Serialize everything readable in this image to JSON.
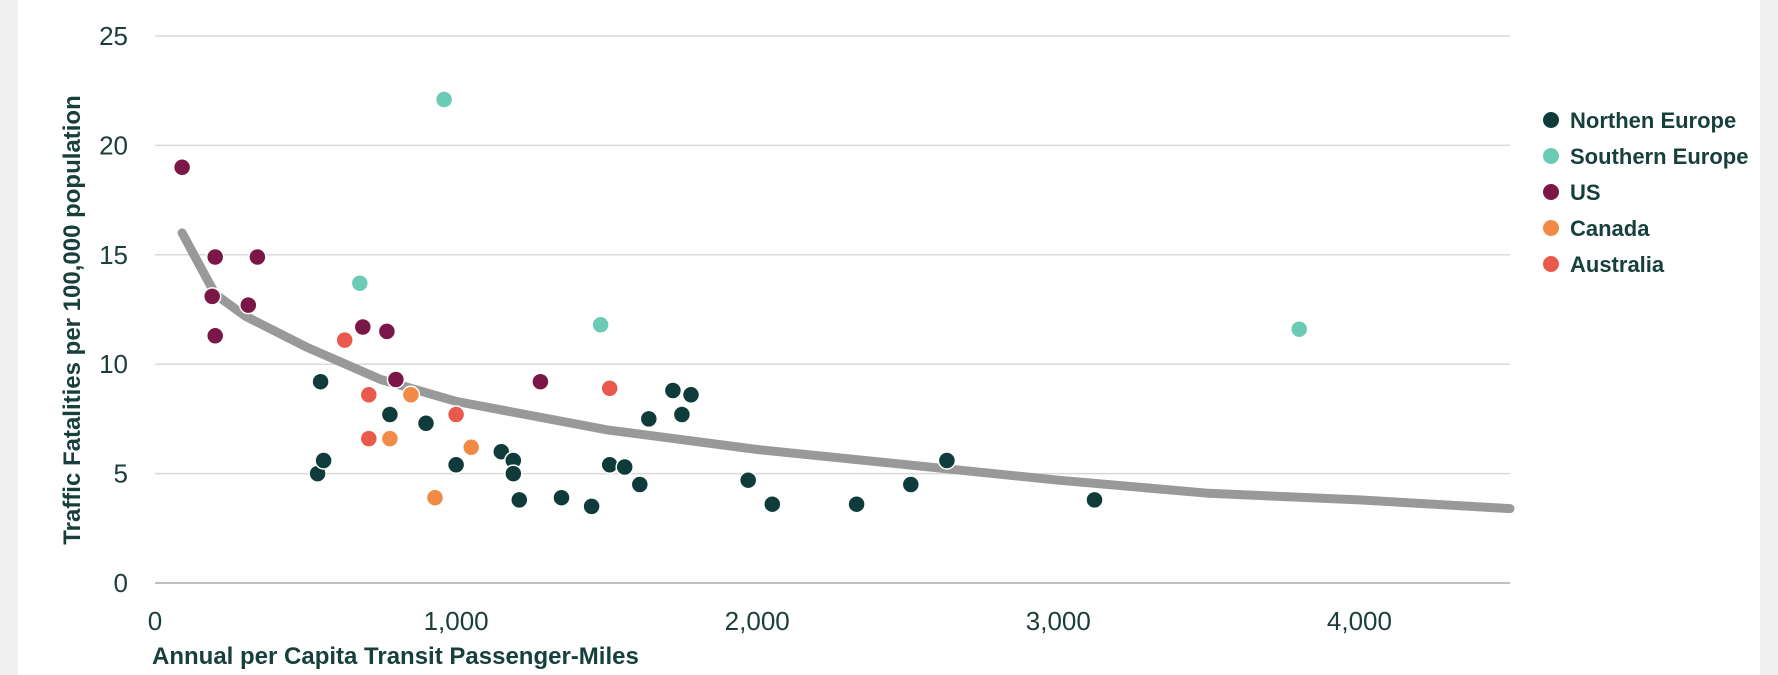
{
  "chart_data": {
    "type": "scatter",
    "title": "",
    "xlabel": "Annual per Capita Transit Passenger-Miles",
    "ylabel": "Traffic Fatalities per 100,000 population",
    "xlim": [
      0,
      4500
    ],
    "ylim": [
      0,
      25
    ],
    "x_ticks": [
      0,
      1000,
      2000,
      3000,
      4000
    ],
    "x_tick_labels": [
      "0",
      "1,000",
      "2,000",
      "3,000",
      "4,000"
    ],
    "y_ticks": [
      0,
      5,
      10,
      15,
      20,
      25
    ],
    "y_tick_labels": [
      "0",
      "5",
      "10",
      "15",
      "20",
      "25"
    ],
    "grid": "horizontal",
    "legend_position": "right",
    "trendline": {
      "color": "#999999",
      "points": [
        [
          90,
          16
        ],
        [
          200,
          13.2
        ],
        [
          300,
          12.2
        ],
        [
          500,
          10.8
        ],
        [
          750,
          9.3
        ],
        [
          1000,
          8.3
        ],
        [
          1500,
          7
        ],
        [
          2000,
          6.1
        ],
        [
          2500,
          5.4
        ],
        [
          3000,
          4.7
        ],
        [
          3500,
          4.1
        ],
        [
          4000,
          3.8
        ],
        [
          4500,
          3.4
        ]
      ]
    },
    "series": [
      {
        "name": "Northen Europe",
        "color": "#0f3b3a",
        "points": [
          [
            550,
            9.2
          ],
          [
            540,
            5
          ],
          [
            560,
            5.6
          ],
          [
            780,
            7.7
          ],
          [
            900,
            7.3
          ],
          [
            1000,
            5.4
          ],
          [
            1150,
            6
          ],
          [
            1190,
            5.6
          ],
          [
            1190,
            5
          ],
          [
            1210,
            3.8
          ],
          [
            1350,
            3.9
          ],
          [
            1450,
            3.5
          ],
          [
            1510,
            5.4
          ],
          [
            1560,
            5.3
          ],
          [
            1610,
            4.5
          ],
          [
            1640,
            7.5
          ],
          [
            1720,
            8.8
          ],
          [
            1750,
            7.7
          ],
          [
            1780,
            8.6
          ],
          [
            1970,
            4.7
          ],
          [
            2050,
            3.6
          ],
          [
            2330,
            3.6
          ],
          [
            2510,
            4.5
          ],
          [
            2630,
            5.6
          ],
          [
            3120,
            3.8
          ]
        ]
      },
      {
        "name": "Southern Europe",
        "color": "#6ccbb5",
        "points": [
          [
            960,
            22.1
          ],
          [
            680,
            13.7
          ],
          [
            1480,
            11.8
          ],
          [
            3800,
            11.6
          ]
        ]
      },
      {
        "name": "US",
        "color": "#7b1746",
        "points": [
          [
            90,
            19
          ],
          [
            200,
            14.9
          ],
          [
            340,
            14.9
          ],
          [
            190,
            13.1
          ],
          [
            310,
            12.7
          ],
          [
            200,
            11.3
          ],
          [
            690,
            11.7
          ],
          [
            770,
            11.5
          ],
          [
            800,
            9.3
          ],
          [
            1280,
            9.2
          ]
        ]
      },
      {
        "name": "Canada",
        "color": "#f08a45",
        "points": [
          [
            850,
            8.6
          ],
          [
            780,
            6.6
          ],
          [
            930,
            3.9
          ],
          [
            1050,
            6.2
          ]
        ]
      },
      {
        "name": "Australia",
        "color": "#ea5a4c",
        "points": [
          [
            630,
            11.1
          ],
          [
            710,
            8.6
          ],
          [
            710,
            6.6
          ],
          [
            1000,
            7.7
          ],
          [
            1510,
            8.9
          ]
        ]
      }
    ]
  }
}
